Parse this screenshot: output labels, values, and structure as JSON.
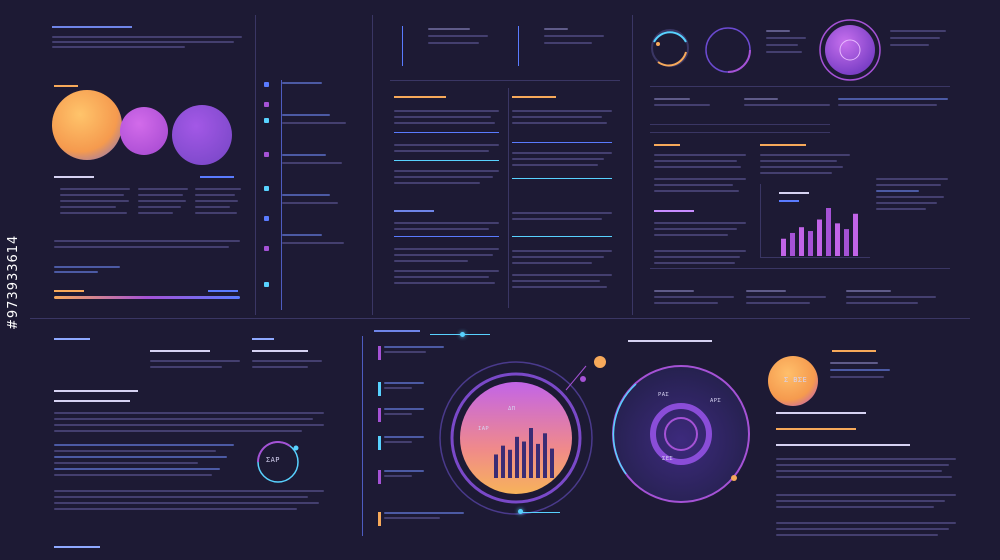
{
  "colors": {
    "background": "#1d1a34",
    "orange": "#f7a95a",
    "purple": "#a552d6",
    "violet": "#8a4dd8",
    "cyan": "#58d2ff",
    "blue": "#5a7bff"
  },
  "watermark": "#973933614",
  "circle_panel": {
    "center_label": "ΔΠ",
    "inner_left": "ΙΑΡ",
    "inner_right": "ΡΑΣ",
    "bottom_left": "ΣΕΣ",
    "bottom_right": "ΑΡΣ"
  },
  "orb_panel": {
    "value": "Σ ΒΣΕ"
  },
  "radial_badge": {
    "value": "ΣΑΡ"
  },
  "chart_data": {
    "type": "bar",
    "bars": [
      {
        "panel": "upper-right",
        "values": [
          18,
          24,
          30,
          26,
          38,
          50,
          34,
          28,
          44
        ]
      },
      {
        "panel": "circle-gauge",
        "values": [
          40,
          55,
          48,
          70,
          62,
          85,
          58,
          76,
          50
        ]
      }
    ]
  }
}
